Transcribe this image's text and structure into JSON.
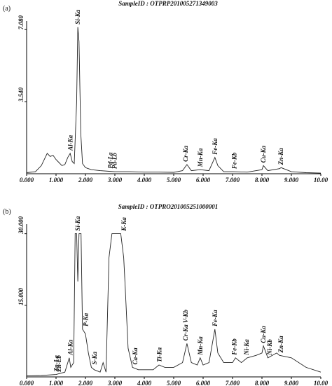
{
  "chart_data": [
    {
      "type": "line",
      "panel": "(a)",
      "title": "SampleID : OTPRP201005271349003",
      "xlim": [
        0,
        10
      ],
      "ylim": [
        0,
        7.5
      ],
      "xticks": [
        {
          "value": 0,
          "label": "0.000"
        },
        {
          "value": 1,
          "label": "1.000"
        },
        {
          "value": 2,
          "label": "2.000"
        },
        {
          "value": 3,
          "label": "3.000"
        },
        {
          "value": 4,
          "label": "4.000"
        },
        {
          "value": 5,
          "label": "5.000"
        },
        {
          "value": 6,
          "label": "6.000"
        },
        {
          "value": 7,
          "label": "7.000"
        },
        {
          "value": 8,
          "label": "8.000"
        },
        {
          "value": 9,
          "label": "9.000"
        },
        {
          "value": 10,
          "label": "10.00"
        }
      ],
      "yticks": [
        {
          "value": 3.54,
          "label": "3.540"
        },
        {
          "value": 7.08,
          "label": "7.080"
        }
      ],
      "color": "#222222",
      "x": [
        0,
        0.3,
        0.5,
        0.7,
        0.8,
        0.9,
        1.0,
        1.1,
        1.2,
        1.3,
        1.4,
        1.48,
        1.55,
        1.62,
        1.7,
        1.74,
        1.78,
        1.84,
        1.9,
        2.0,
        2.2,
        2.5,
        2.8,
        3.0,
        3.5,
        4.0,
        4.5,
        5.0,
        5.3,
        5.45,
        5.6,
        5.9,
        6.2,
        6.4,
        6.5,
        6.7,
        7.0,
        7.5,
        8.0,
        8.05,
        8.2,
        8.6,
        8.65,
        9.0,
        9.5,
        10.0
      ],
      "values": [
        0.05,
        0.1,
        0.4,
        1.0,
        0.85,
        0.9,
        0.7,
        0.55,
        0.4,
        0.45,
        0.8,
        1.0,
        0.6,
        0.5,
        3.5,
        7.2,
        6.5,
        2.0,
        0.5,
        0.3,
        0.2,
        0.15,
        0.12,
        0.1,
        0.1,
        0.08,
        0.08,
        0.07,
        0.15,
        0.45,
        0.15,
        0.2,
        0.15,
        0.8,
        0.4,
        0.1,
        0.1,
        0.08,
        0.2,
        0.4,
        0.15,
        0.25,
        0.3,
        0.1,
        0.05,
        0.03
      ],
      "annotations": [
        {
          "text": "Al-Ka",
          "x": 1.49
        },
        {
          "text": "Si-Ka",
          "x": 1.74
        },
        {
          "text": "Pd-La",
          "x": 2.84
        },
        {
          "text": "Pd-Lb",
          "x": 2.99
        },
        {
          "text": "Cr-Ka",
          "x": 5.41
        },
        {
          "text": "Mn-Ka",
          "x": 5.9
        },
        {
          "text": "Fe-Ka",
          "x": 6.4
        },
        {
          "text": "Fe-Kb",
          "x": 7.06
        },
        {
          "text": "Cu-Ka",
          "x": 8.05
        },
        {
          "text": "Zn-Ka",
          "x": 8.64
        }
      ]
    },
    {
      "type": "line",
      "panel": "(b)",
      "title": "SampleID : OTPRO201005251000001",
      "xlim": [
        0,
        10
      ],
      "ylim": [
        0,
        32
      ],
      "xticks": [
        {
          "value": 0,
          "label": "0.000"
        },
        {
          "value": 1,
          "label": "1.000"
        },
        {
          "value": 2,
          "label": "2.000"
        },
        {
          "value": 3,
          "label": "3.000"
        },
        {
          "value": 4,
          "label": "4.000"
        },
        {
          "value": 5,
          "label": "5.000"
        },
        {
          "value": 6,
          "label": "6.000"
        },
        {
          "value": 7,
          "label": "7.000"
        },
        {
          "value": 8,
          "label": "8.000"
        },
        {
          "value": 9,
          "label": "9.000"
        },
        {
          "value": 10,
          "label": "10.00"
        }
      ],
      "yticks": [
        {
          "value": 15,
          "label": "15.000"
        },
        {
          "value": 30,
          "label": "30.000"
        }
      ],
      "color": "#222222",
      "x": [
        0,
        0.5,
        1.0,
        1.3,
        1.45,
        1.5,
        1.6,
        1.65,
        1.7,
        1.74,
        1.78,
        1.85,
        1.9,
        2.0,
        2.1,
        2.2,
        2.3,
        2.5,
        2.6,
        2.7,
        2.8,
        2.9,
        3.2,
        3.3,
        3.35,
        3.45,
        3.6,
        3.8,
        4.0,
        4.3,
        4.5,
        4.7,
        5.0,
        5.3,
        5.45,
        5.6,
        5.8,
        5.9,
        6.0,
        6.2,
        6.4,
        6.5,
        6.7,
        7.0,
        7.1,
        7.3,
        7.5,
        7.8,
        8.0,
        8.05,
        8.2,
        8.5,
        8.6,
        9.0,
        9.5,
        10.0
      ],
      "values": [
        0.2,
        0.3,
        0.5,
        1.0,
        4,
        2,
        3,
        30,
        30,
        20,
        30,
        30,
        10,
        9,
        5,
        2,
        1.5,
        1,
        3,
        1,
        25,
        30,
        30,
        25,
        19,
        6,
        2,
        1.5,
        1.5,
        1.5,
        2.5,
        2,
        2,
        3,
        7,
        3,
        2.5,
        4,
        2.5,
        3,
        10,
        5,
        3,
        3,
        4,
        3,
        4,
        4.5,
        5,
        6.5,
        4,
        5,
        4.5,
        4,
        2,
        1
      ],
      "annotations": [
        {
          "text": "Zn-La",
          "x": 1.01
        },
        {
          "text": "Zn-Lb",
          "x": 1.1
        },
        {
          "text": "Al-Ka",
          "x": 1.49
        },
        {
          "text": "Si-Ka",
          "x": 1.74
        },
        {
          "text": "P-Ka",
          "x": 2.01
        },
        {
          "text": "S-Ka",
          "x": 2.31
        },
        {
          "text": "K-Ka",
          "x": 3.31
        },
        {
          "text": "Ca-Ka",
          "x": 3.69
        },
        {
          "text": "Ti-Ka",
          "x": 4.51
        },
        {
          "text": "Cr-Ka V-Kb",
          "x": 5.41
        },
        {
          "text": "Mn-Ka",
          "x": 5.9
        },
        {
          "text": "Fe-Ka",
          "x": 6.4
        },
        {
          "text": "Fe-Kb",
          "x": 7.06
        },
        {
          "text": "Ni-Ka",
          "x": 7.48
        },
        {
          "text": "Cu-Ka",
          "x": 8.05
        },
        {
          "text": "Ni-Kb",
          "x": 8.26
        },
        {
          "text": "Zn-Ka",
          "x": 8.64
        }
      ]
    }
  ]
}
